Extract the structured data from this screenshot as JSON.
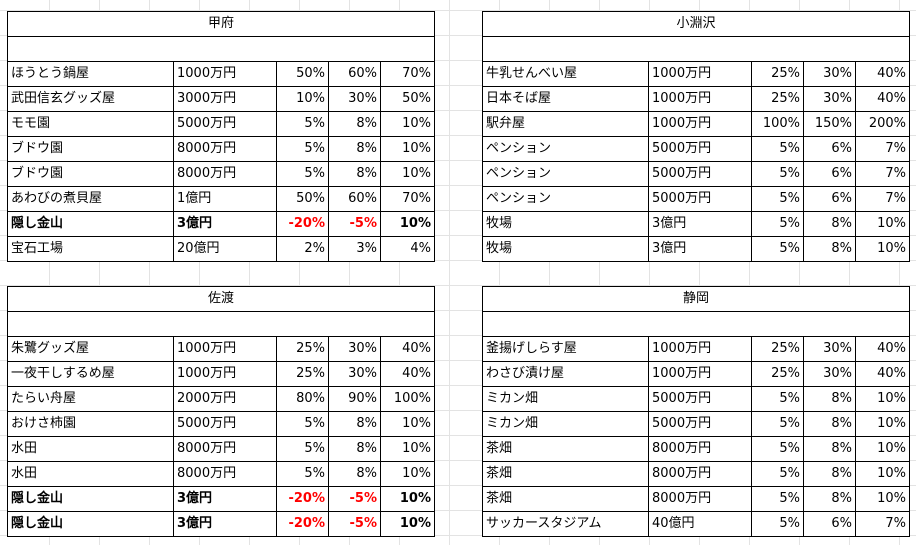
{
  "blocks": [
    {
      "title": "甲府",
      "rows": [
        {
          "name": "ほうとう鍋屋",
          "price": "1000万円",
          "p1": "50%",
          "p2": "60%",
          "p3": "70%",
          "bold": false
        },
        {
          "name": "武田信玄グッズ屋",
          "price": "3000万円",
          "p1": "10%",
          "p2": "30%",
          "p3": "50%",
          "bold": false
        },
        {
          "name": "モモ園",
          "price": "5000万円",
          "p1": "5%",
          "p2": "8%",
          "p3": "10%",
          "bold": false
        },
        {
          "name": "ブドウ園",
          "price": "8000万円",
          "p1": "5%",
          "p2": "8%",
          "p3": "10%",
          "bold": false
        },
        {
          "name": "ブドウ園",
          "price": "8000万円",
          "p1": "5%",
          "p2": "8%",
          "p3": "10%",
          "bold": false
        },
        {
          "name": "あわびの煮貝屋",
          "price": "1億円",
          "p1": "50%",
          "p2": "60%",
          "p3": "70%",
          "bold": false
        },
        {
          "name": "隠し金山",
          "price": "3億円",
          "p1": "-20%",
          "p2": "-5%",
          "p3": "10%",
          "bold": true
        },
        {
          "name": "宝石工場",
          "price": "20億円",
          "p1": "2%",
          "p2": "3%",
          "p3": "4%",
          "bold": false
        }
      ]
    },
    {
      "title": "小淵沢",
      "rows": [
        {
          "name": "牛乳せんべい屋",
          "price": "1000万円",
          "p1": "25%",
          "p2": "30%",
          "p3": "40%",
          "bold": false
        },
        {
          "name": "日本そば屋",
          "price": "1000万円",
          "p1": "25%",
          "p2": "30%",
          "p3": "40%",
          "bold": false
        },
        {
          "name": "駅弁屋",
          "price": "1000万円",
          "p1": "100%",
          "p2": "150%",
          "p3": "200%",
          "bold": false
        },
        {
          "name": "ペンション",
          "price": "5000万円",
          "p1": "5%",
          "p2": "6%",
          "p3": "7%",
          "bold": false
        },
        {
          "name": "ペンション",
          "price": "5000万円",
          "p1": "5%",
          "p2": "6%",
          "p3": "7%",
          "bold": false
        },
        {
          "name": "ペンション",
          "price": "5000万円",
          "p1": "5%",
          "p2": "6%",
          "p3": "7%",
          "bold": false
        },
        {
          "name": "牧場",
          "price": "3億円",
          "p1": "5%",
          "p2": "8%",
          "p3": "10%",
          "bold": false
        },
        {
          "name": "牧場",
          "price": "3億円",
          "p1": "5%",
          "p2": "8%",
          "p3": "10%",
          "bold": false
        }
      ]
    },
    {
      "title": "佐渡",
      "rows": [
        {
          "name": "朱鷺グッズ屋",
          "price": "1000万円",
          "p1": "25%",
          "p2": "30%",
          "p3": "40%",
          "bold": false
        },
        {
          "name": "一夜干しするめ屋",
          "price": "1000万円",
          "p1": "25%",
          "p2": "30%",
          "p3": "40%",
          "bold": false
        },
        {
          "name": "たらい舟屋",
          "price": "2000万円",
          "p1": "80%",
          "p2": "90%",
          "p3": "100%",
          "bold": false
        },
        {
          "name": "おけさ柿園",
          "price": "5000万円",
          "p1": "5%",
          "p2": "8%",
          "p3": "10%",
          "bold": false
        },
        {
          "name": "水田",
          "price": "8000万円",
          "p1": "5%",
          "p2": "8%",
          "p3": "10%",
          "bold": false
        },
        {
          "name": "水田",
          "price": "8000万円",
          "p1": "5%",
          "p2": "8%",
          "p3": "10%",
          "bold": false
        },
        {
          "name": "隠し金山",
          "price": "3億円",
          "p1": "-20%",
          "p2": "-5%",
          "p3": "10%",
          "bold": true
        },
        {
          "name": "隠し金山",
          "price": "3億円",
          "p1": "-20%",
          "p2": "-5%",
          "p3": "10%",
          "bold": true
        }
      ]
    },
    {
      "title": "静岡",
      "rows": [
        {
          "name": "釜揚げしらす屋",
          "price": "1000万円",
          "p1": "25%",
          "p2": "30%",
          "p3": "40%",
          "bold": false
        },
        {
          "name": "わさび漬け屋",
          "price": "1000万円",
          "p1": "25%",
          "p2": "30%",
          "p3": "40%",
          "bold": false
        },
        {
          "name": "ミカン畑",
          "price": "5000万円",
          "p1": "5%",
          "p2": "8%",
          "p3": "10%",
          "bold": false
        },
        {
          "name": "ミカン畑",
          "price": "5000万円",
          "p1": "5%",
          "p2": "8%",
          "p3": "10%",
          "bold": false
        },
        {
          "name": "茶畑",
          "price": "8000万円",
          "p1": "5%",
          "p2": "8%",
          "p3": "10%",
          "bold": false
        },
        {
          "name": "茶畑",
          "price": "8000万円",
          "p1": "5%",
          "p2": "8%",
          "p3": "10%",
          "bold": false
        },
        {
          "name": "茶畑",
          "price": "8000万円",
          "p1": "5%",
          "p2": "8%",
          "p3": "10%",
          "bold": false
        },
        {
          "name": "サッカースタジアム",
          "price": "40億円",
          "p1": "5%",
          "p2": "6%",
          "p3": "7%",
          "bold": false
        }
      ]
    }
  ]
}
